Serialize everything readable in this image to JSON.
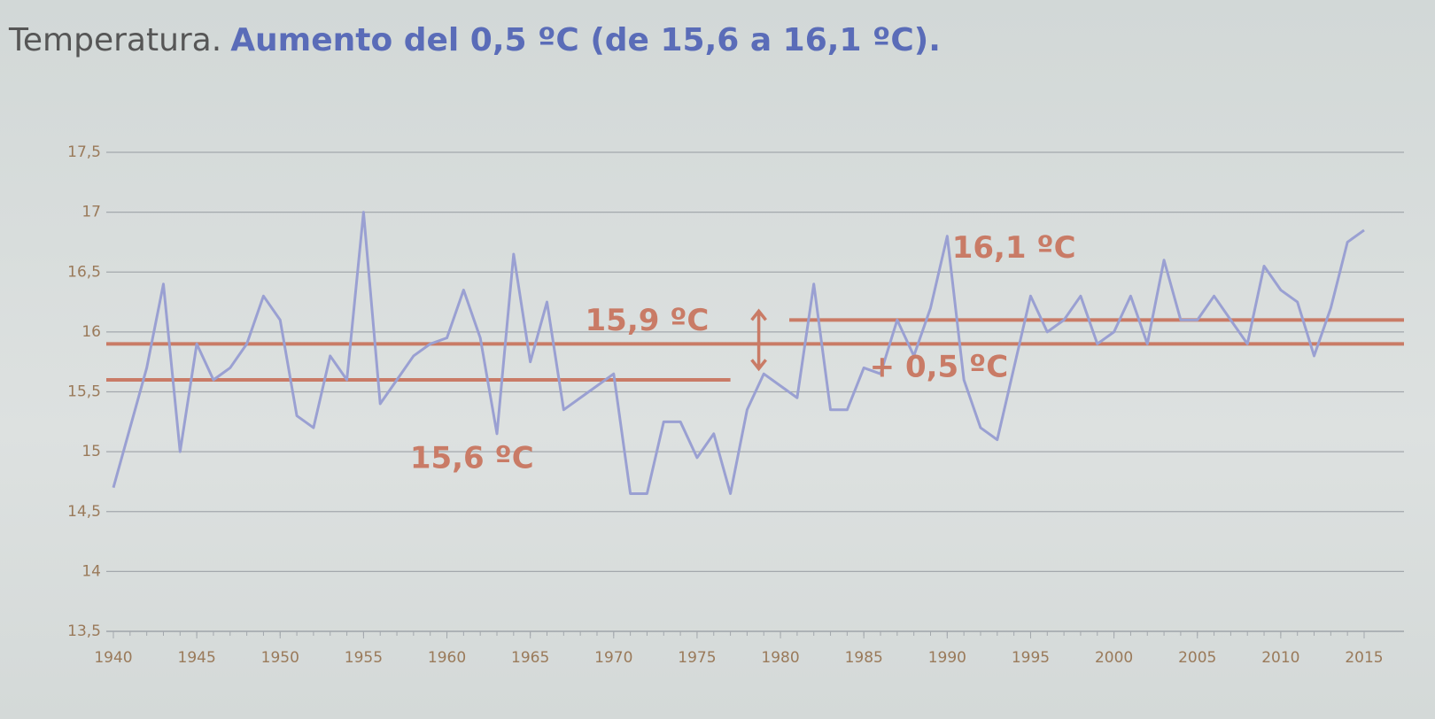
{
  "chart_data": {
    "type": "line",
    "title": "Temperatura.",
    "subtitle": "Aumento del 0,5 ºC (de 15,6 a 16,1 ºC).",
    "x": [
      1940,
      1941,
      1942,
      1943,
      1944,
      1945,
      1946,
      1947,
      1948,
      1949,
      1950,
      1951,
      1952,
      1953,
      1954,
      1955,
      1956,
      1957,
      1958,
      1959,
      1960,
      1961,
      1962,
      1963,
      1964,
      1965,
      1966,
      1967,
      1968,
      1969,
      1970,
      1971,
      1972,
      1973,
      1974,
      1975,
      1976,
      1977,
      1978,
      1979,
      1980,
      1981,
      1982,
      1983,
      1984,
      1985,
      1986,
      1987,
      1988,
      1989,
      1990,
      1991,
      1992,
      1993,
      1994,
      1995,
      1996,
      1997,
      1998,
      1999,
      2000,
      2001,
      2002,
      2003,
      2004,
      2005,
      2006,
      2007,
      2008,
      2009,
      2010,
      2011,
      2012,
      2013,
      2014,
      2015
    ],
    "series": [
      {
        "color": "#9aa0d2",
        "values": [
          14.7,
          15.2,
          15.7,
          16.4,
          15.0,
          15.9,
          15.6,
          15.7,
          15.9,
          16.3,
          16.1,
          15.3,
          15.2,
          15.8,
          15.6,
          17.0,
          15.4,
          15.6,
          15.8,
          15.9,
          15.95,
          16.35,
          15.95,
          15.15,
          16.65,
          15.75,
          16.25,
          15.35,
          15.45,
          15.55,
          15.65,
          14.65,
          14.65,
          15.25,
          15.25,
          14.95,
          15.15,
          14.65,
          15.35,
          15.65,
          15.55,
          15.45,
          16.4,
          15.35,
          15.35,
          15.7,
          15.65,
          16.1,
          15.8,
          16.2,
          16.8,
          15.6,
          15.2,
          15.1,
          15.7,
          16.3,
          16.0,
          16.1,
          16.3,
          15.9,
          16.0,
          16.3,
          15.9,
          16.6,
          16.1,
          16.1,
          16.3,
          16.1,
          15.9,
          16.55,
          16.35,
          16.25,
          15.8,
          16.2,
          16.75,
          16.85
        ]
      }
    ],
    "xlim": [
      1940,
      2015
    ],
    "xticks": [
      1940,
      1945,
      1950,
      1955,
      1960,
      1965,
      1970,
      1975,
      1980,
      1985,
      1990,
      1995,
      2000,
      2005,
      2010,
      2015
    ],
    "ylim": [
      13.5,
      17.5
    ],
    "yticks": [
      {
        "value": 13.5,
        "label": "13,5"
      },
      14,
      {
        "value": 14.5,
        "label": "14,5"
      },
      15,
      {
        "value": 15.5,
        "label": "15,5"
      },
      16,
      {
        "value": 16.5,
        "label": "16,5"
      },
      17,
      {
        "value": 17.5,
        "label": "17,5"
      }
    ],
    "grid": true,
    "reference_lines": [
      {
        "label": "15,6 ºC",
        "value": 15.6,
        "start": 1940,
        "end": 1977
      },
      {
        "label": "15,9 ºC",
        "value": 15.9,
        "start": 1940,
        "end": 2015
      },
      {
        "label": "16,1 ºC",
        "value": 16.1,
        "start": 1980,
        "end": 2015
      }
    ],
    "reference_color": "#c97b66",
    "annotation": "+ 0,5 ºC"
  }
}
